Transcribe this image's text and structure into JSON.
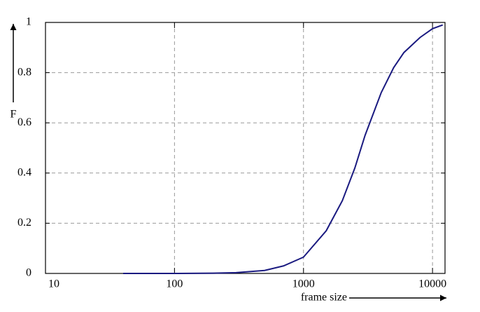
{
  "chart_data": {
    "type": "line",
    "x_label": "frame size",
    "y_label": "F",
    "x": [
      40,
      100,
      200,
      300,
      500,
      700,
      1000,
      1500,
      2000,
      2500,
      3000,
      4000,
      5000,
      6000,
      8000,
      10000,
      12000
    ],
    "series": [
      {
        "color": "#1a1a80",
        "values": [
          0,
          0,
          0.001,
          0.003,
          0.012,
          0.03,
          0.065,
          0.17,
          0.29,
          0.42,
          0.55,
          0.72,
          0.82,
          0.88,
          0.94,
          0.975,
          0.99
        ]
      }
    ],
    "xlim": [
      10,
      12500
    ],
    "ylim": [
      0,
      1
    ],
    "log_x": true,
    "xticks": [
      10,
      100,
      1000,
      10000
    ],
    "yticks": [
      0,
      0.2,
      0.4,
      0.6,
      0.8,
      1
    ],
    "grid": true
  }
}
